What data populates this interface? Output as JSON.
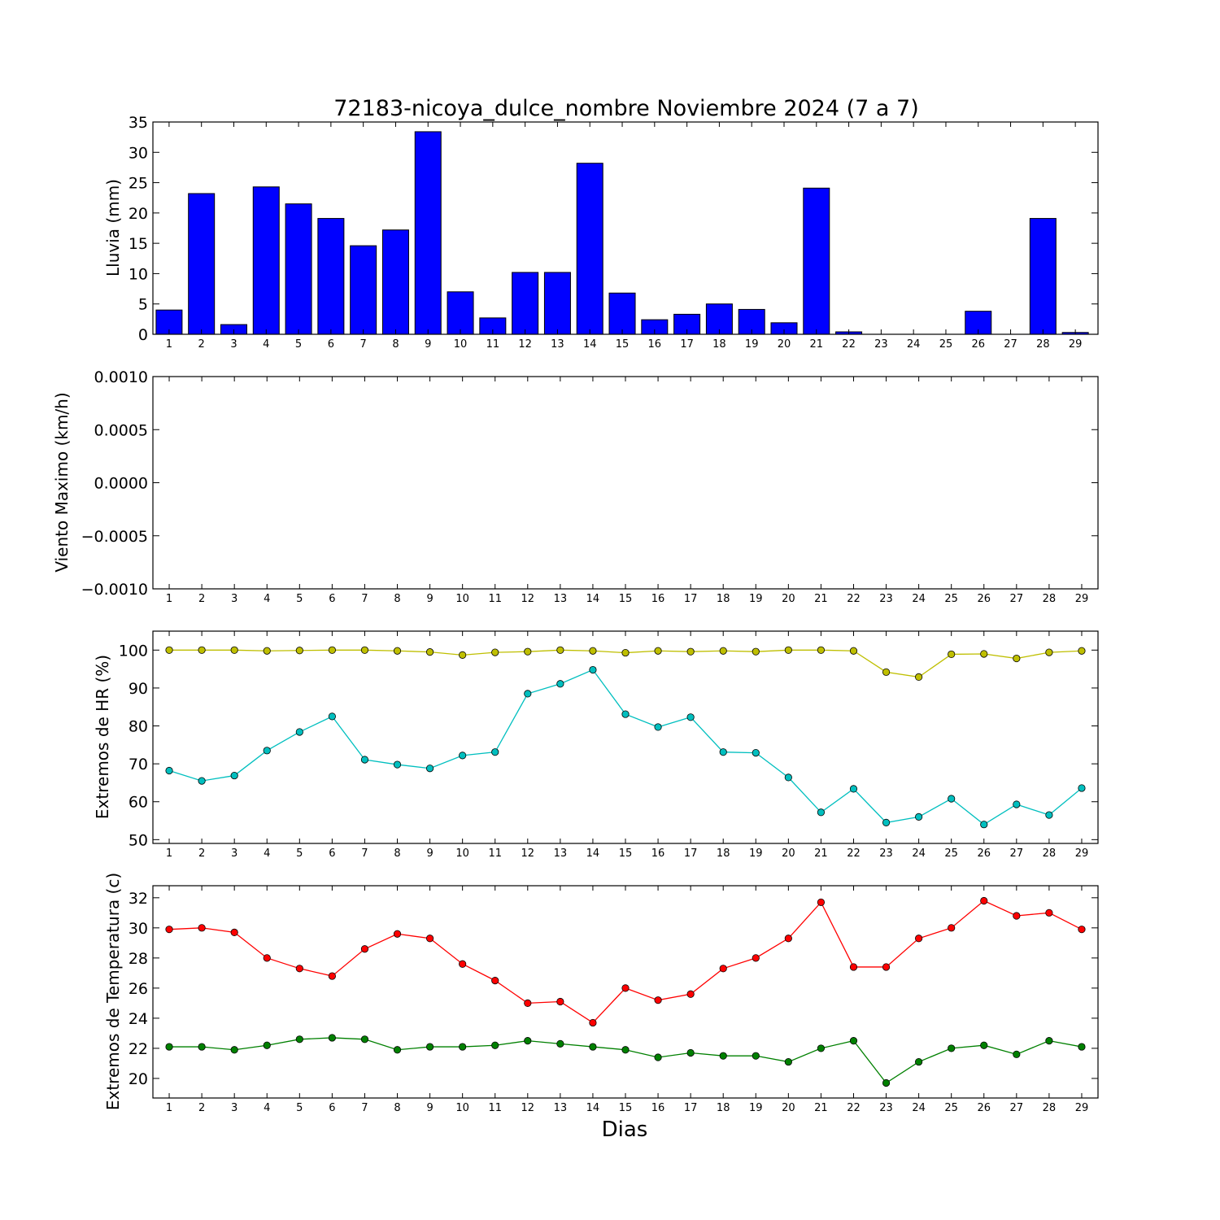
{
  "chart_data": [
    {
      "type": "bar",
      "title": "72183-nicoya_dulce_nombre Noviembre 2024  (7 a 7)",
      "ylabel": "Lluvia (mm)",
      "categories": [
        "1",
        "2",
        "3",
        "4",
        "5",
        "6",
        "7",
        "8",
        "9",
        "10",
        "11",
        "12",
        "13",
        "14",
        "15",
        "16",
        "17",
        "18",
        "19",
        "20",
        "21",
        "22",
        "23",
        "24",
        "25",
        "26",
        "27",
        "28",
        "29"
      ],
      "yticks": [
        "0",
        "5",
        "10",
        "15",
        "20",
        "25",
        "30",
        "35"
      ],
      "ylim": [
        0,
        35
      ],
      "series": [
        {
          "values": [
            4.0,
            23.2,
            1.6,
            24.3,
            21.5,
            19.1,
            14.6,
            17.2,
            33.4,
            7.0,
            2.7,
            10.2,
            10.2,
            28.2,
            6.8,
            2.4,
            3.3,
            5.0,
            4.1,
            1.9,
            24.1,
            0.4,
            0.0,
            0.0,
            0.0,
            3.8,
            0.0,
            19.1,
            0.3
          ],
          "color": "#0000ff"
        }
      ]
    },
    {
      "type": "line",
      "ylabel": "Viento Maximo (km/h)",
      "categories": [
        "1",
        "2",
        "3",
        "4",
        "5",
        "6",
        "7",
        "8",
        "9",
        "10",
        "11",
        "12",
        "13",
        "14",
        "15",
        "16",
        "17",
        "18",
        "19",
        "20",
        "21",
        "22",
        "23",
        "24",
        "25",
        "26",
        "27",
        "28",
        "29"
      ],
      "yticks": [
        "0.0010",
        "0.0005",
        "0.0000",
        "−0.0005",
        "−0.0010"
      ],
      "ylim": [
        -0.001,
        0.001
      ],
      "series": []
    },
    {
      "type": "line",
      "ylabel": "Extremos de HR (%)",
      "categories": [
        "1",
        "2",
        "3",
        "4",
        "5",
        "6",
        "7",
        "8",
        "9",
        "10",
        "11",
        "12",
        "13",
        "14",
        "15",
        "16",
        "17",
        "18",
        "19",
        "20",
        "21",
        "22",
        "23",
        "24",
        "25",
        "26",
        "27",
        "28",
        "29"
      ],
      "yticks": [
        "50",
        "60",
        "70",
        "80",
        "90",
        "100"
      ],
      "ylim": [
        49,
        105
      ],
      "series": [
        {
          "values": [
            100,
            100,
            100,
            99.8,
            99.9,
            100,
            100,
            99.8,
            99.5,
            98.7,
            99.4,
            99.6,
            100,
            99.8,
            99.3,
            99.8,
            99.6,
            99.8,
            99.6,
            100,
            100,
            99.8,
            94.2,
            92.9,
            98.9,
            99.0,
            97.8,
            99.4,
            99.8
          ],
          "color": "#bfbf00"
        },
        {
          "values": [
            68.2,
            65.5,
            66.9,
            73.5,
            78.4,
            82.5,
            71.1,
            69.8,
            68.8,
            72.2,
            73.1,
            88.5,
            91.1,
            94.8,
            83.1,
            79.7,
            82.3,
            73.1,
            72.9,
            66.4,
            57.2,
            63.4,
            54.5,
            56.0,
            60.8,
            54.0,
            59.3,
            56.5,
            63.6
          ],
          "color": "#00bfbf"
        }
      ]
    },
    {
      "type": "line",
      "ylabel": "Extremos de Temperatura (c)",
      "xlabel": "Dias",
      "categories": [
        "1",
        "2",
        "3",
        "4",
        "5",
        "6",
        "7",
        "8",
        "9",
        "10",
        "11",
        "12",
        "13",
        "14",
        "15",
        "16",
        "17",
        "18",
        "19",
        "20",
        "21",
        "22",
        "23",
        "24",
        "25",
        "26",
        "27",
        "28",
        "29"
      ],
      "yticks": [
        "20",
        "22",
        "24",
        "26",
        "28",
        "30",
        "32"
      ],
      "ylim": [
        18.7,
        32.8
      ],
      "series": [
        {
          "values": [
            29.9,
            30.0,
            29.7,
            28.0,
            27.3,
            26.8,
            28.6,
            29.6,
            29.3,
            27.6,
            26.5,
            25.0,
            25.1,
            23.7,
            26.0,
            25.2,
            25.6,
            27.3,
            28.0,
            29.3,
            31.7,
            27.4,
            27.4,
            29.3,
            30.0,
            31.8,
            30.8,
            31.0,
            29.9
          ],
          "color": "#ff0000"
        },
        {
          "values": [
            22.1,
            22.1,
            21.9,
            22.2,
            22.6,
            22.7,
            22.6,
            21.9,
            22.1,
            22.1,
            22.2,
            22.5,
            22.3,
            22.1,
            21.9,
            21.4,
            21.7,
            21.5,
            21.5,
            21.1,
            22.0,
            22.5,
            19.7,
            21.1,
            22.0,
            22.2,
            21.6,
            22.5,
            22.1
          ],
          "color": "#008000"
        }
      ]
    }
  ]
}
